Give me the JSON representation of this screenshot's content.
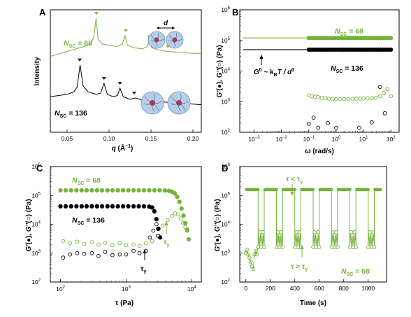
{
  "colors": {
    "green": "#74b33a",
    "green_light": "#8fc555",
    "black": "#000000",
    "gray": "#555555",
    "blob": "#b7cfe6"
  },
  "panels": {
    "A": {
      "letter": "A"
    },
    "B": {
      "letter": "B"
    },
    "C": {
      "letter": "C"
    },
    "D": {
      "letter": "D"
    }
  },
  "chart_data": [
    {
      "panel": "A",
      "type": "line",
      "xlabel_q": "q",
      "xlabel_unit": "(Å",
      "xlabel_exp": "−1",
      "xlabel_close": ")",
      "ylabel": "Intensity",
      "xlim": [
        0.03,
        0.21
      ],
      "xticks": [
        "0.05",
        "0.10",
        "0.15",
        "0.20"
      ],
      "xtick_values": [
        0.05,
        0.1,
        0.15,
        0.2
      ],
      "labels": {
        "nsc68_N": "N",
        "nsc68_sub": "SC",
        "nsc68_val": " = 68",
        "nsc136_N": "N",
        "nsc136_sub": "SC",
        "nsc136_val": " = 136",
        "d": "d"
      },
      "series": [
        {
          "name_prefix": "N",
          "name_sub": "SC",
          "name_value": "68",
          "color": "green",
          "x": [
            0.03,
            0.04,
            0.05,
            0.06,
            0.07,
            0.078,
            0.082,
            0.0845,
            0.087,
            0.092,
            0.1,
            0.11,
            0.116,
            0.119,
            0.122,
            0.13,
            0.14,
            0.145,
            0.148,
            0.151,
            0.16,
            0.17,
            0.18,
            0.19,
            0.2,
            0.21
          ],
          "y": [
            0.62,
            0.64,
            0.66,
            0.68,
            0.7,
            0.72,
            0.78,
            0.93,
            0.76,
            0.72,
            0.71,
            0.7,
            0.72,
            0.79,
            0.71,
            0.69,
            0.68,
            0.7,
            0.74,
            0.69,
            0.67,
            0.66,
            0.655,
            0.65,
            0.645,
            0.64
          ],
          "peak_markers_x": [
            0.085,
            0.12,
            0.148,
            0.17
          ]
        },
        {
          "name_prefix": "N",
          "name_sub": "SC",
          "name_value": "136",
          "color": "black",
          "x": [
            0.03,
            0.04,
            0.05,
            0.058,
            0.062,
            0.0655,
            0.069,
            0.075,
            0.085,
            0.09,
            0.094,
            0.098,
            0.105,
            0.11,
            0.113,
            0.117,
            0.125,
            0.132,
            0.14,
            0.15,
            0.16,
            0.17,
            0.18,
            0.19,
            0.2,
            0.21
          ],
          "y": [
            0.29,
            0.3,
            0.31,
            0.33,
            0.37,
            0.55,
            0.38,
            0.33,
            0.31,
            0.32,
            0.4,
            0.31,
            0.29,
            0.3,
            0.36,
            0.29,
            0.27,
            0.28,
            0.26,
            0.255,
            0.25,
            0.245,
            0.24,
            0.235,
            0.23,
            0.225
          ],
          "peak_markers_x": [
            0.065,
            0.094,
            0.113,
            0.13
          ]
        }
      ]
    },
    {
      "panel": "B",
      "type": "scatter",
      "xlabel": "ω (rad/s)",
      "ylabel_G1": "G'",
      "ylabel_mid": ", G''",
      "ylabel_units": " (Pa)",
      "xscale": "log",
      "yscale": "log",
      "xlim": [
        0.0003,
        200
      ],
      "ylim": [
        100,
        1000000
      ],
      "xticks": [
        "10",
        "10",
        "10",
        "10",
        "10",
        "10",
        "10"
      ],
      "xtick_exps": [
        "−3",
        "−2",
        "−1",
        "0",
        "1",
        "2",
        ""
      ],
      "xtick_values": [
        0.001,
        0.01,
        0.1,
        1,
        10,
        100
      ],
      "yticks": [
        "10",
        "10",
        "10",
        "10",
        "10"
      ],
      "ytick_exps": [
        "2",
        "3",
        "4",
        "5",
        "6"
      ],
      "ytick_values": [
        100,
        1000,
        10000,
        100000,
        1000000
      ],
      "labels": {
        "nsc68_N": "N",
        "nsc68_sub": "SC",
        "nsc68_val": " = 68",
        "nsc136_N": "N",
        "nsc136_sub": "SC",
        "nsc136_val": " = 136",
        "g0": "G",
        "g0_sup": "0",
        "g0_rest": " ~ k",
        "g0_sub": "B",
        "g0_tail": "T / d",
        "g0_exp": "3"
      },
      "series": [
        {
          "name": "G' 68",
          "color": "green",
          "filled": true,
          "value": 120000,
          "xrange": [
            0.1,
            100
          ]
        },
        {
          "name": "G' 136",
          "color": "black",
          "filled": true,
          "value": 50000,
          "xrange": [
            0.1,
            100
          ]
        },
        {
          "name": "G'' 68",
          "color": "green",
          "filled": false,
          "x": [
            0.1,
            0.13,
            0.17,
            0.22,
            0.3,
            0.4,
            0.55,
            0.75,
            1,
            1.4,
            2,
            2.8,
            4,
            5.5,
            7.5,
            10,
            14,
            20,
            28,
            40,
            55,
            75,
            100
          ],
          "y": [
            1600,
            1500,
            1450,
            1400,
            1350,
            1300,
            1250,
            1230,
            1200,
            1200,
            1200,
            1210,
            1230,
            1250,
            1250,
            1270,
            1280,
            1300,
            1350,
            1500,
            1900,
            2600,
            1500
          ]
        },
        {
          "name": "G'' 136",
          "color": "black",
          "filled": false,
          "x": [
            0.1,
            0.15,
            0.22,
            0.5,
            1.0,
            7.0,
            20,
            40,
            60
          ],
          "y": [
            190,
            300,
            140,
            200,
            140,
            140,
            210,
            3000,
            420
          ]
        }
      ]
    },
    {
      "panel": "C",
      "type": "scatter",
      "xlabel": "τ (Pa)",
      "ylabel_G1": "G'",
      "ylabel_mid": ", G''",
      "ylabel_units": " (Pa)",
      "xscale": "log",
      "yscale": "log",
      "xlim": [
        70,
        14000
      ],
      "ylim": [
        100,
        1000000
      ],
      "xticks": [
        "10",
        "10",
        "10"
      ],
      "xtick_exps": [
        "2",
        "3",
        "4"
      ],
      "xtick_values": [
        100,
        1000,
        10000
      ],
      "yticks": [
        "10",
        "10",
        "10",
        "10",
        "10"
      ],
      "ytick_exps": [
        "2",
        "3",
        "4",
        "5",
        "6"
      ],
      "ytick_values": [
        100,
        1000,
        10000,
        100000,
        1000000
      ],
      "labels": {
        "nsc68_N": "N",
        "nsc68_sub": "SC",
        "nsc68_val": " = 68",
        "nsc136_N": "N",
        "nsc136_sub": "SC",
        "nsc136_val": " = 136",
        "tau_y": "τ",
        "tau_y_sub": "y"
      },
      "series": [
        {
          "name": "G' 68",
          "color": "green",
          "filled": true,
          "x": [
            100,
            120,
            145,
            175,
            210,
            250,
            300,
            360,
            430,
            520,
            620,
            750,
            900,
            1080,
            1300,
            1560,
            1870,
            2250,
            2700,
            3240,
            3900,
            4500,
            5000,
            5500,
            6000,
            6500,
            7000,
            7500,
            8000,
            8500,
            9000
          ],
          "y": [
            150000,
            150000,
            150000,
            150000,
            150000,
            150000,
            150000,
            150000,
            150000,
            150000,
            150000,
            150000,
            150000,
            150000,
            150000,
            150000,
            150000,
            150000,
            150000,
            150000,
            148000,
            145000,
            135000,
            118000,
            90000,
            60000,
            35000,
            20000,
            11000,
            6500,
            3000
          ]
        },
        {
          "name": "G' 136",
          "color": "black",
          "filled": true,
          "x": [
            100,
            120,
            145,
            175,
            210,
            250,
            300,
            360,
            430,
            520,
            620,
            750,
            900,
            1080,
            1300,
            1560,
            1870,
            2250,
            2500,
            2700,
            2900,
            3100,
            3300
          ],
          "y": [
            42000,
            42000,
            42000,
            42000,
            42000,
            42000,
            42000,
            42000,
            42000,
            42000,
            42000,
            42000,
            42000,
            42000,
            42000,
            42000,
            42000,
            41000,
            38000,
            28000,
            15000,
            7000,
            3500
          ]
        },
        {
          "name": "G'' 68",
          "color": "green",
          "filled": false,
          "x": [
            110,
            140,
            180,
            230,
            300,
            380,
            480,
            620,
            800,
            1000,
            1300,
            1600,
            2000,
            2500,
            3000,
            3600,
            4300,
            5000,
            5600,
            6200,
            6800,
            7400,
            8000,
            8600
          ],
          "y": [
            2600,
            2200,
            2500,
            2100,
            2400,
            2000,
            2300,
            1900,
            2200,
            1900,
            2000,
            1800,
            2200,
            2600,
            4000,
            9000,
            14000,
            19000,
            24000,
            22000,
            16000,
            11000,
            8000,
            6000
          ]
        },
        {
          "name": "G'' 136",
          "color": "black",
          "filled": false,
          "x": [
            110,
            140,
            180,
            230,
            300,
            380,
            480,
            620,
            800,
            1000,
            1300,
            1600,
            2000,
            2300,
            2600,
            2900,
            3100
          ],
          "y": [
            700,
            900,
            1000,
            950,
            1000,
            800,
            1100,
            850,
            900,
            900,
            1200,
            1000,
            1200,
            3500,
            6000,
            10000,
            4000
          ]
        }
      ]
    },
    {
      "panel": "D",
      "type": "line",
      "xlabel": "Time (s)",
      "ylabel_G1": "G'",
      "ylabel_mid": ", G''",
      "ylabel_units": " (Pa)",
      "yscale": "log",
      "xlim": [
        -50,
        1150
      ],
      "ylim": [
        100,
        1000000
      ],
      "xticks": [
        "0",
        "200",
        "400",
        "600",
        "800",
        "1000"
      ],
      "xtick_values": [
        0,
        200,
        400,
        600,
        800,
        1000
      ],
      "yticks": [
        "10",
        "10",
        "10",
        "10",
        "10"
      ],
      "ytick_exps": [
        "2",
        "3",
        "4",
        "5",
        "6"
      ],
      "ytick_values": [
        100,
        1000,
        10000,
        100000,
        1000000
      ],
      "labels": {
        "tau_lt": "τ < τ",
        "tau_lt_sub": "y",
        "tau_gt": "τ > τ",
        "tau_gt_sub": "y",
        "nsc68_N": "N",
        "nsc68_sub": "SC",
        "nsc68_val": " = 68"
      },
      "high_segments": [
        [
          0,
          100
        ],
        [
          150,
          250
        ],
        [
          300,
          400
        ],
        [
          450,
          550
        ],
        [
          600,
          700
        ],
        [
          750,
          850
        ],
        [
          900,
          1000
        ],
        [
          1050,
          1100
        ]
      ],
      "high_value": 160000,
      "low_segments": [
        [
          100,
          150
        ],
        [
          250,
          300
        ],
        [
          400,
          450
        ],
        [
          550,
          600
        ],
        [
          700,
          750
        ],
        [
          850,
          900
        ],
        [
          1000,
          1050
        ]
      ],
      "initial_low": {
        "x": [
          0,
          10,
          20,
          30,
          40,
          50,
          60,
          70,
          80,
          90,
          100
        ],
        "y": [
          1000,
          1300,
          900,
          700,
          500,
          350,
          280,
          900,
          1200,
          900,
          1600
        ]
      },
      "low_band": [
        1800,
        4500
      ]
    }
  ]
}
